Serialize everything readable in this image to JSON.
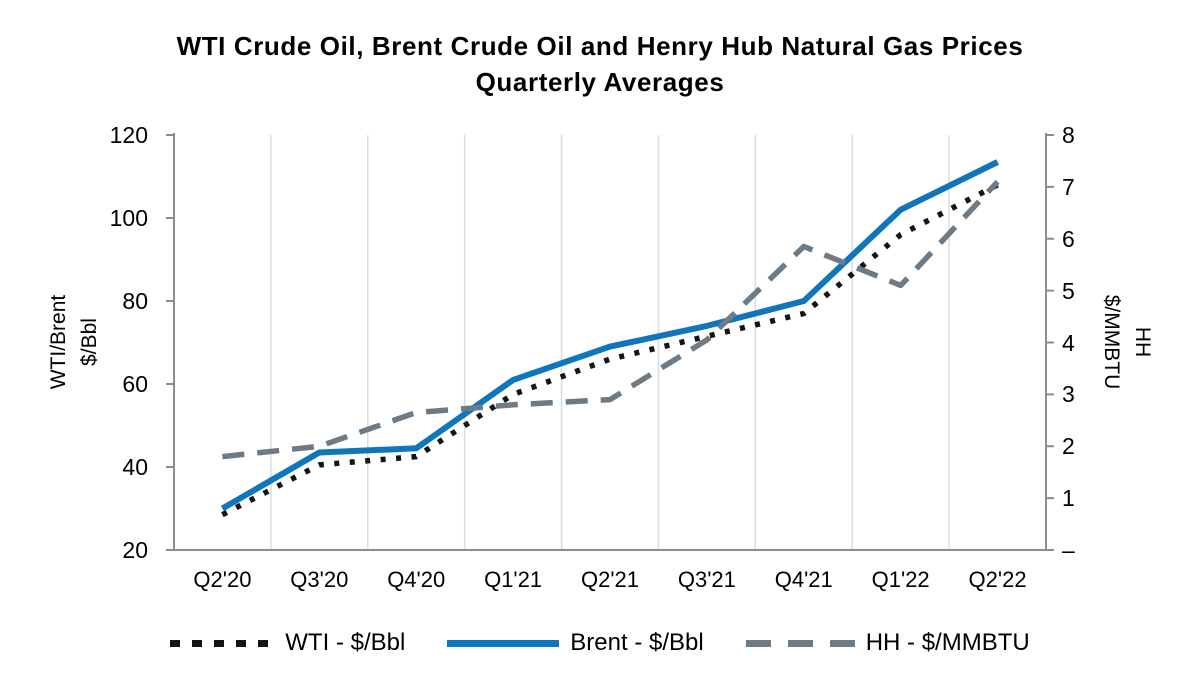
{
  "title": {
    "line1": "WTI Crude Oil, Brent Crude Oil and Henry Hub Natural Gas Prices",
    "line2": "Quarterly Averages"
  },
  "left_axis": {
    "title_line1": "WTI/Brent",
    "title_line2": "$/Bbl",
    "ticks": [
      120,
      100,
      80,
      60,
      40,
      20
    ]
  },
  "right_axis": {
    "title_line1": "HH",
    "title_line2": "$/MMBTU",
    "ticks": [
      {
        "label": "8",
        "value": 8
      },
      {
        "label": "7",
        "value": 7
      },
      {
        "label": "6",
        "value": 6
      },
      {
        "label": "5",
        "value": 5
      },
      {
        "label": "4",
        "value": 4
      },
      {
        "label": "3",
        "value": 3
      },
      {
        "label": "2",
        "value": 2
      },
      {
        "label": "1",
        "value": 1
      },
      {
        "label": "–",
        "value": 0
      }
    ]
  },
  "colors": {
    "wti": "#141414",
    "brent": "#1076BC",
    "hh": "#6D7B87",
    "axis": "#8C8C8C",
    "gridline": "#DCDCDC",
    "text": "#000000"
  },
  "chart_data": {
    "type": "line",
    "title": "WTI Crude Oil, Brent Crude Oil and Henry Hub Natural Gas Prices Quarterly Averages",
    "categories": [
      "Q2'20",
      "Q3'20",
      "Q4'20",
      "Q1'21",
      "Q2'21",
      "Q3'21",
      "Q4'21",
      "Q1'22",
      "Q2'22"
    ],
    "series": [
      {
        "name": "WTI - $/Bbl",
        "axis": "left",
        "style": "dotted",
        "color": "#141414",
        "values": [
          28.5,
          40.5,
          42.5,
          57.5,
          66,
          71.5,
          77,
          96,
          108
        ]
      },
      {
        "name": "Brent - $/Bbl",
        "axis": "left",
        "style": "solid",
        "color": "#1076BC",
        "values": [
          30,
          43.5,
          44.5,
          61,
          69,
          74,
          80,
          102,
          113.5
        ]
      },
      {
        "name": "HH - $/MMBTU",
        "axis": "right",
        "style": "dashed",
        "color": "#6D7B87",
        "values": [
          1.8,
          2.0,
          2.65,
          2.8,
          2.9,
          4.05,
          5.85,
          5.1,
          7.1
        ]
      }
    ],
    "left_ylim": [
      20,
      120
    ],
    "right_ylim": [
      0,
      8
    ],
    "left_axis_label": "WTI/Brent $/Bbl",
    "right_axis_label": "HH $/MMBTU",
    "grid": "vertical",
    "legend_position": "bottom"
  }
}
